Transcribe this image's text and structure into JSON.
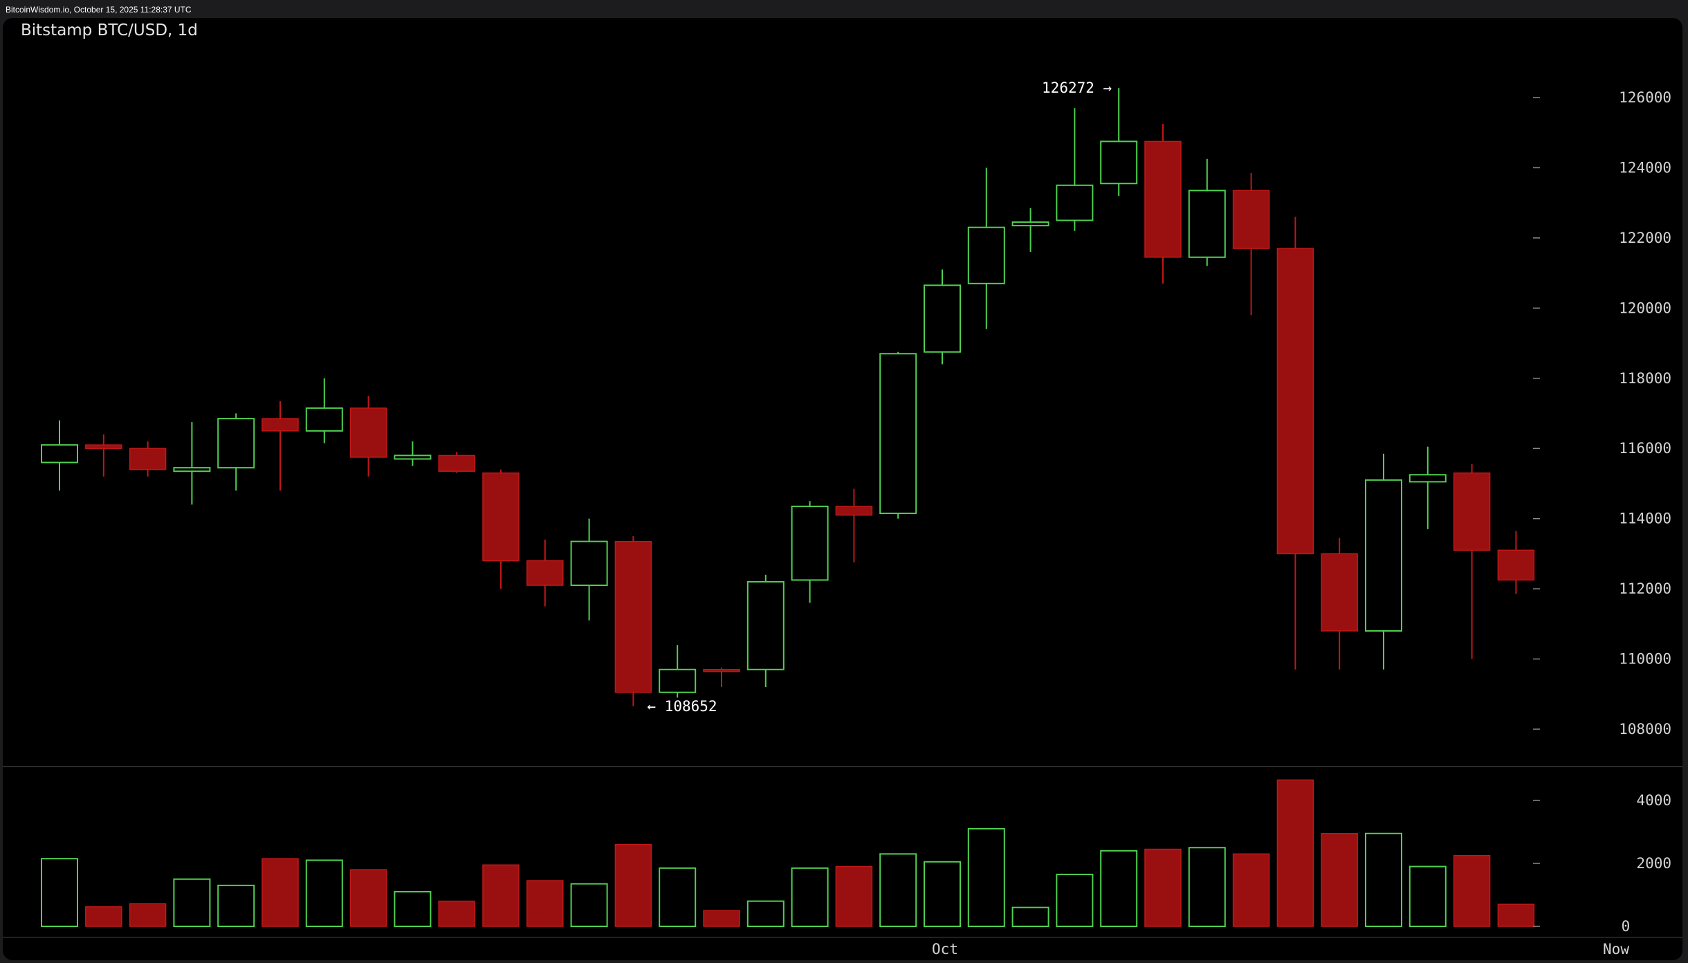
{
  "header": {
    "source_text": "BitcoinWisdom.io, October 15, 2025 11:28:37 UTC"
  },
  "colors": {
    "background": "#000000",
    "frame": "#1c1c1f",
    "up": "#4fd14f",
    "down": "#9a1010",
    "down_edge": "#c01818",
    "axis_text": "#d4d4d4"
  },
  "chart_data": {
    "type": "candlestick",
    "title": "Bitstamp BTC/USD, 1d",
    "exchange": "Bitstamp",
    "pair": "BTC/USD",
    "interval": "1d",
    "ylim": [
      106500,
      126800
    ],
    "y_ticks": [
      108000,
      110000,
      112000,
      114000,
      116000,
      118000,
      120000,
      122000,
      124000,
      126000
    ],
    "volume_ylim": [
      0,
      5000
    ],
    "volume_ticks": [
      0,
      2000,
      4000
    ],
    "x_ticks": [
      {
        "label": "Oct",
        "index": 20
      },
      {
        "label": "Now",
        "index": 35
      }
    ],
    "grid": false,
    "annotations": [
      {
        "text": "126272 →",
        "value": 126272,
        "index": 24,
        "type": "high"
      },
      {
        "text": "← 108652",
        "value": 108652,
        "index": 13,
        "type": "low"
      }
    ],
    "candles": [
      {
        "open": 115600,
        "high": 116800,
        "low": 114800,
        "close": 116100,
        "volume": 2150
      },
      {
        "open": 116100,
        "high": 116400,
        "low": 115200,
        "close": 116000,
        "volume": 620
      },
      {
        "open": 116000,
        "high": 116200,
        "low": 115200,
        "close": 115400,
        "volume": 720
      },
      {
        "open": 115350,
        "high": 116750,
        "low": 114400,
        "close": 115450,
        "volume": 1500
      },
      {
        "open": 115450,
        "high": 117000,
        "low": 114800,
        "close": 116850,
        "volume": 1300
      },
      {
        "open": 116850,
        "high": 117350,
        "low": 114800,
        "close": 116500,
        "volume": 2150
      },
      {
        "open": 116500,
        "high": 118000,
        "low": 116150,
        "close": 117150,
        "volume": 2100
      },
      {
        "open": 117150,
        "high": 117500,
        "low": 115200,
        "close": 115750,
        "volume": 1800
      },
      {
        "open": 115700,
        "high": 116200,
        "low": 115500,
        "close": 115800,
        "volume": 1100
      },
      {
        "open": 115800,
        "high": 115900,
        "low": 115300,
        "close": 115350,
        "volume": 800
      },
      {
        "open": 115300,
        "high": 115400,
        "low": 112000,
        "close": 112800,
        "volume": 1950
      },
      {
        "open": 112800,
        "high": 113400,
        "low": 111500,
        "close": 112100,
        "volume": 1450
      },
      {
        "open": 112100,
        "high": 114000,
        "low": 111100,
        "close": 113350,
        "volume": 1350
      },
      {
        "open": 113350,
        "high": 113500,
        "low": 108652,
        "close": 109050,
        "volume": 2600
      },
      {
        "open": 109050,
        "high": 110400,
        "low": 108900,
        "close": 109700,
        "volume": 1850
      },
      {
        "open": 109700,
        "high": 109750,
        "low": 109200,
        "close": 109650,
        "volume": 500
      },
      {
        "open": 109700,
        "high": 112400,
        "low": 109200,
        "close": 112200,
        "volume": 800
      },
      {
        "open": 112250,
        "high": 114500,
        "low": 111600,
        "close": 114350,
        "volume": 1850
      },
      {
        "open": 114350,
        "high": 114850,
        "low": 112750,
        "close": 114100,
        "volume": 1900
      },
      {
        "open": 114150,
        "high": 118750,
        "low": 114000,
        "close": 118700,
        "volume": 2300
      },
      {
        "open": 118750,
        "high": 121100,
        "low": 118400,
        "close": 120650,
        "volume": 2050
      },
      {
        "open": 120700,
        "high": 124000,
        "low": 119400,
        "close": 122300,
        "volume": 3100
      },
      {
        "open": 122350,
        "high": 122850,
        "low": 121600,
        "close": 122450,
        "volume": 600
      },
      {
        "open": 122500,
        "high": 125700,
        "low": 122200,
        "close": 123500,
        "volume": 1650
      },
      {
        "open": 123550,
        "high": 126272,
        "low": 123200,
        "close": 124750,
        "volume": 2400
      },
      {
        "open": 124750,
        "high": 125250,
        "low": 120700,
        "close": 121450,
        "volume": 2450
      },
      {
        "open": 121450,
        "high": 124250,
        "low": 121200,
        "close": 123350,
        "volume": 2500
      },
      {
        "open": 123350,
        "high": 123850,
        "low": 119800,
        "close": 121700,
        "volume": 2300
      },
      {
        "open": 121700,
        "high": 122600,
        "low": 109700,
        "close": 113000,
        "volume": 4650
      },
      {
        "open": 113000,
        "high": 113450,
        "low": 109700,
        "close": 110800,
        "volume": 2950
      },
      {
        "open": 110800,
        "high": 115850,
        "low": 109700,
        "close": 115100,
        "volume": 2950
      },
      {
        "open": 115050,
        "high": 116050,
        "low": 113700,
        "close": 115250,
        "volume": 1900
      },
      {
        "open": 115300,
        "high": 115550,
        "low": 110000,
        "close": 113100,
        "volume": 2250
      },
      {
        "open": 113100,
        "high": 113650,
        "low": 111850,
        "close": 112250,
        "volume": 700
      }
    ]
  }
}
